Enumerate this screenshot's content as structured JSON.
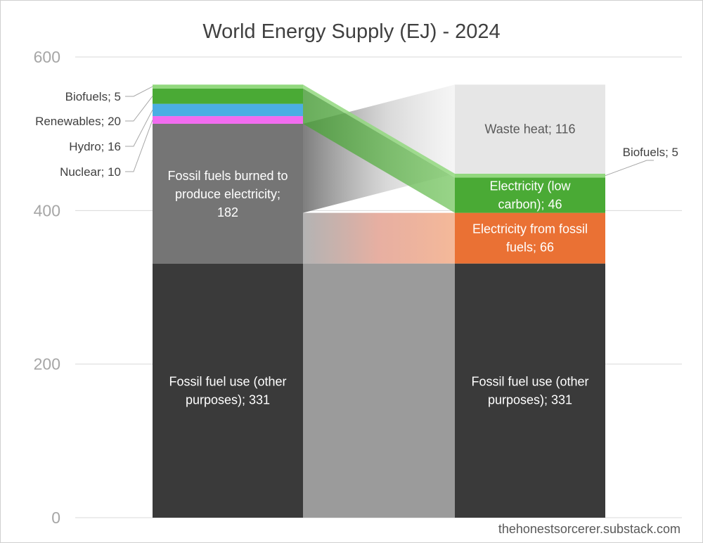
{
  "chart_data": {
    "type": "bar",
    "title": "World Energy Supply (EJ) - 2024",
    "ylim": [
      0,
      600
    ],
    "yticks": [
      "0",
      "200",
      "400",
      "600"
    ],
    "grid": true,
    "left_bar": {
      "segments": [
        {
          "name": "Fossil fuel use (other purposes)",
          "value": 331,
          "label_lines": [
            "Fossil fuel use (other",
            "purposes); 331"
          ],
          "color": "#3a3a3a"
        },
        {
          "name": "Fossil fuels burned to produce electricity",
          "value": 182,
          "label_lines": [
            "Fossil fuels burned to",
            "produce electricity;",
            "182"
          ],
          "color": "#757575"
        },
        {
          "name": "Nuclear",
          "value": 10,
          "side_label": "Nuclear; 10",
          "color": "#f26cf0"
        },
        {
          "name": "Hydro",
          "value": 16,
          "side_label": "Hydro; 16",
          "color": "#4baee3"
        },
        {
          "name": "Renewables",
          "value": 20,
          "side_label": "Renewables; 20",
          "color": "#4aaa35"
        },
        {
          "name": "Biofuels",
          "value": 5,
          "side_label": "Biofuels; 5",
          "color": "#92d87e"
        }
      ]
    },
    "right_bar": {
      "segments": [
        {
          "name": "Fossil fuel use (other purposes)",
          "value": 331,
          "label_lines": [
            "Fossil fuel use (other",
            "purposes); 331"
          ],
          "color": "#3a3a3a"
        },
        {
          "name": "Electricity from fossil fuels",
          "value": 66,
          "label_lines": [
            "Electricity from fossil",
            "fuels; 66"
          ],
          "color": "#ea7134"
        },
        {
          "name": "Electricity (low carbon)",
          "value": 46,
          "label_lines": [
            "Electricity (low",
            "carbon); 46"
          ],
          "color": "#4aaa35"
        },
        {
          "name": "Biofuels",
          "value": 5,
          "side_label": "Biofuels; 5",
          "color": "#92d87e"
        },
        {
          "name": "Waste heat",
          "value": 116,
          "label_lines": [
            "Waste heat; 116"
          ],
          "color": "#e6e6e6"
        }
      ]
    }
  },
  "watermark": "thehonestsorcerer.substack.com"
}
